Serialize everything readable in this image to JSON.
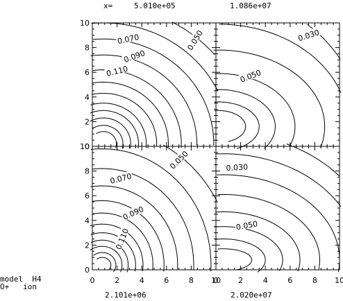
{
  "header": {
    "x_prefix": "x=",
    "values": [
      "5.010e+05",
      "1.086e+07"
    ]
  },
  "footer": {
    "values": [
      "2.101e+06",
      "2.020e+07"
    ]
  },
  "model_label": {
    "line1": "model  H4",
    "line2": "O+   ion"
  },
  "chart_data": [
    {
      "type": "contour",
      "panel": "top-left",
      "x_value": "5.010e+05",
      "xlim": [
        0,
        10
      ],
      "ylim": [
        0,
        10
      ],
      "yticks": [
        0,
        2,
        4,
        6,
        8,
        10
      ],
      "labeled_levels": [
        "0.070",
        "0.050",
        "0.090",
        "0.110"
      ]
    },
    {
      "type": "contour",
      "panel": "top-right",
      "x_value": "1.086e+07",
      "xlim": [
        0,
        10
      ],
      "ylim": [
        0,
        10
      ],
      "labeled_levels": [
        "0.030",
        "0.050"
      ]
    },
    {
      "type": "contour",
      "panel": "bottom-left",
      "x_value": "2.101e+06",
      "xlim": [
        0,
        10
      ],
      "ylim": [
        0,
        10
      ],
      "xticks": [
        0,
        2,
        4,
        6,
        8,
        10
      ],
      "yticks": [
        0,
        2,
        4,
        6,
        8,
        10
      ],
      "labeled_levels": [
        "0.050",
        "0.070",
        "0.090",
        "0.110"
      ]
    },
    {
      "type": "contour",
      "panel": "bottom-right",
      "x_value": "2.020e+07",
      "xlim": [
        0,
        10
      ],
      "ylim": [
        0,
        10
      ],
      "xticks": [
        0,
        2,
        4,
        6,
        8,
        10
      ],
      "labeled_levels": [
        "0.030",
        "0.050"
      ]
    }
  ]
}
